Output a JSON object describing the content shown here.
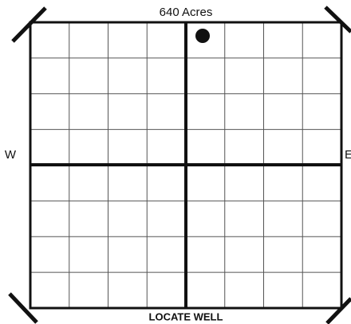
{
  "title": "640 Acres",
  "left_label": "W",
  "right_label": "E",
  "footer": "LOCATE WELL"
}
